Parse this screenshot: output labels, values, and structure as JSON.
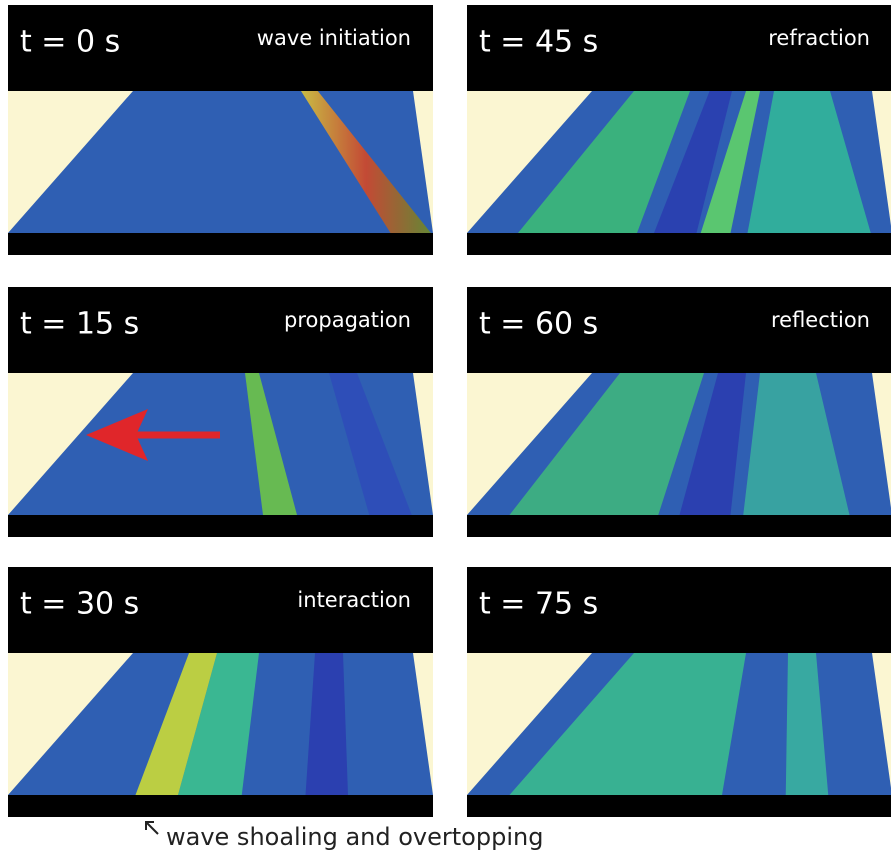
{
  "panels": [
    {
      "time": "t = 0 s",
      "label": "wave initiation"
    },
    {
      "time": "t = 45 s",
      "label": "refraction"
    },
    {
      "time": "t = 15 s",
      "label": "propagation"
    },
    {
      "time": "t = 60 s",
      "label": "reflection"
    },
    {
      "time": "t = 30 s",
      "label": "interaction"
    },
    {
      "time": "t = 75 s"
    }
  ],
  "caption": "wave shoaling and overtopping"
}
